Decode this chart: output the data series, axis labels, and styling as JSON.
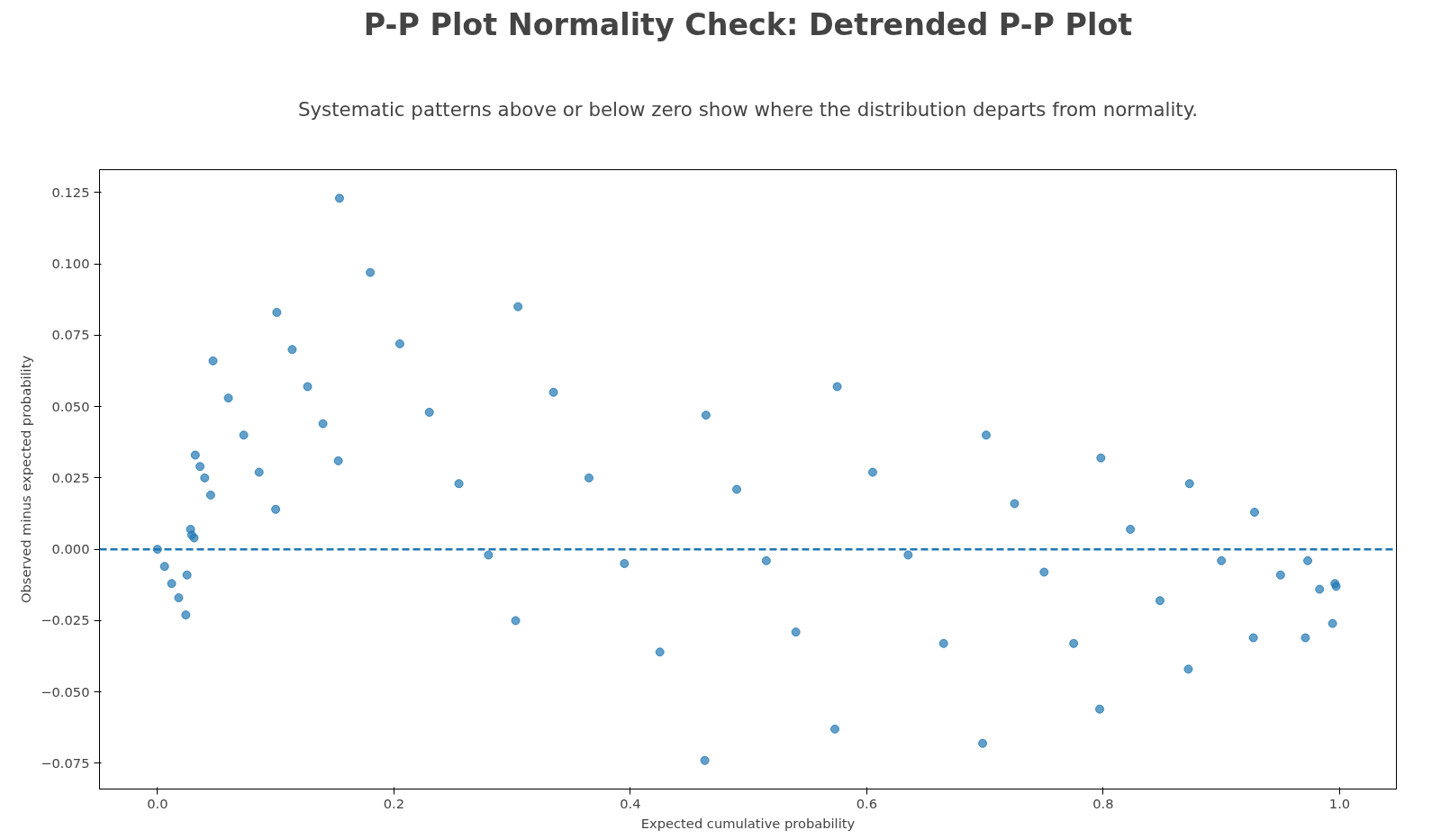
{
  "chart_data": {
    "type": "scatter",
    "title": "P-P Plot Normality Check: Detrended P-P Plot",
    "subtitle": "Systematic patterns above or below zero show where the distribution departs from normality.",
    "xlabel": "Expected cumulative probability",
    "ylabel": "Observed minus expected probability",
    "x": [
      0,
      0.006,
      0.012,
      0.018,
      0.024,
      0.025,
      0.028,
      0.029,
      0.031,
      0.032,
      0.036,
      0.04,
      0.045,
      0.047,
      0.06,
      0.073,
      0.086,
      0.1,
      0.101,
      0.114,
      0.127,
      0.14,
      0.153,
      0.154,
      0.18,
      0.205,
      0.23,
      0.255,
      0.28,
      0.303,
      0.305,
      0.335,
      0.365,
      0.395,
      0.425,
      0.463,
      0.464,
      0.49,
      0.515,
      0.54,
      0.573,
      0.575,
      0.605,
      0.635,
      0.665,
      0.698,
      0.701,
      0.725,
      0.75,
      0.775,
      0.797,
      0.798,
      0.823,
      0.848,
      0.872,
      0.873,
      0.9,
      0.927,
      0.928,
      0.95,
      0.971,
      0.973,
      0.983,
      0.994,
      0.996,
      0.997
    ],
    "series": [
      {
        "color": "#1f77b4",
        "values": [
          0,
          -0.006,
          -0.012,
          -0.017,
          -0.023,
          -0.009,
          0.007,
          0.005,
          0.004,
          0.033,
          0.029,
          0.025,
          0.019,
          0.066,
          0.053,
          0.04,
          0.027,
          0.014,
          0.083,
          0.07,
          0.057,
          0.044,
          0.031,
          0.123,
          0.097,
          0.072,
          0.048,
          0.023,
          -0.002,
          -0.025,
          0.085,
          0.055,
          0.025,
          -0.005,
          -0.036,
          -0.074,
          0.047,
          0.021,
          -0.004,
          -0.029,
          -0.063,
          0.057,
          0.027,
          -0.002,
          -0.033,
          -0.068,
          0.04,
          0.016,
          -0.008,
          -0.033,
          -0.056,
          0.032,
          0.007,
          -0.018,
          -0.042,
          0.023,
          -0.004,
          -0.031,
          0.013,
          -0.009,
          -0.031,
          -0.004,
          -0.014,
          -0.026,
          -0.012,
          -0.013
        ]
      }
    ],
    "xlim": [
      -0.049,
      1.048
    ],
    "ylim": [
      -0.084,
      0.133
    ],
    "xticks": [
      {
        "value": 0,
        "label": "0.0"
      },
      0.2,
      0.4,
      0.6,
      0.8,
      {
        "value": 1,
        "label": "1.0"
      }
    ],
    "yticks": [
      {
        "value": -0.075,
        "label": "−0.075"
      },
      {
        "value": -0.05,
        "label": "−0.050"
      },
      {
        "value": -0.025,
        "label": "−0.025"
      },
      {
        "value": 0,
        "label": "0.000"
      },
      {
        "value": 0.025,
        "label": "0.025"
      },
      {
        "value": 0.05,
        "label": "0.050"
      },
      {
        "value": 0.075,
        "label": "0.075"
      },
      {
        "value": 0.1,
        "label": "0.100"
      },
      {
        "value": 0.125,
        "label": "0.125"
      }
    ],
    "ref_lines": [
      {
        "axis": "y",
        "value": 0,
        "color": "#1f77b4",
        "line_style": "dashed"
      }
    ],
    "marker": "circle",
    "grid": false
  }
}
